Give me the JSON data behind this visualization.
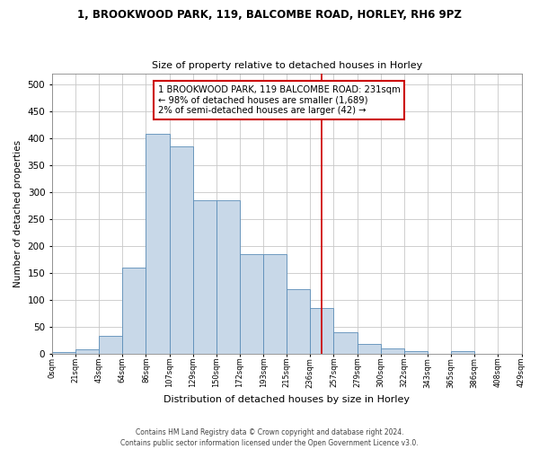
{
  "title_line1": "1, BROOKWOOD PARK, 119, BALCOMBE ROAD, HORLEY, RH6 9PZ",
  "title_line2": "Size of property relative to detached houses in Horley",
  "xlabel": "Distribution of detached houses by size in Horley",
  "ylabel": "Number of detached properties",
  "footnote": "Contains HM Land Registry data © Crown copyright and database right 2024.\nContains public sector information licensed under the Open Government Licence v3.0.",
  "bin_labels": [
    "0sqm",
    "21sqm",
    "43sqm",
    "64sqm",
    "86sqm",
    "107sqm",
    "129sqm",
    "150sqm",
    "172sqm",
    "193sqm",
    "215sqm",
    "236sqm",
    "257sqm",
    "279sqm",
    "300sqm",
    "322sqm",
    "343sqm",
    "365sqm",
    "386sqm",
    "408sqm",
    "429sqm"
  ],
  "bar_values": [
    2,
    7,
    33,
    159,
    407,
    385,
    284,
    284,
    184,
    184,
    119,
    84,
    40,
    18,
    10,
    4,
    0,
    5,
    0,
    0
  ],
  "bar_color": "#c8d8e8",
  "bar_edge_color": "#5b8db8",
  "vline_x": 11.5,
  "vline_color": "#cc0000",
  "annotation_text": "1 BROOKWOOD PARK, 119 BALCOMBE ROAD: 231sqm\n← 98% of detached houses are smaller (1,689)\n2% of semi-detached houses are larger (42) →",
  "annotation_box_color": "#cc0000",
  "ylim": [
    0,
    520
  ],
  "yticks": [
    0,
    50,
    100,
    150,
    200,
    250,
    300,
    350,
    400,
    450,
    500
  ]
}
